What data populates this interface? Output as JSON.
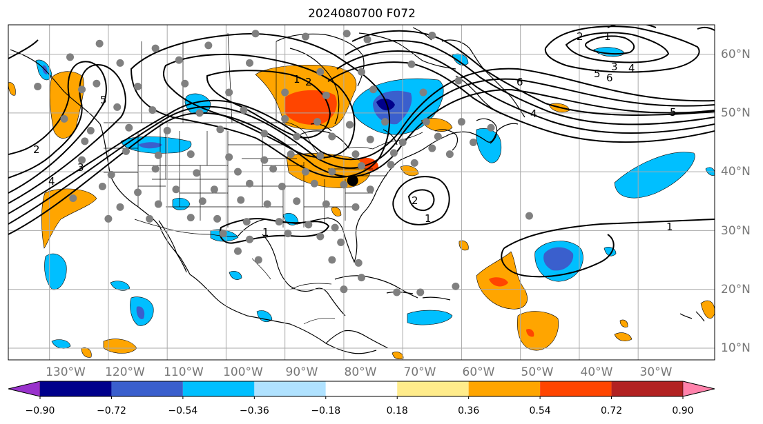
{
  "title": "2024080700 F072",
  "map": {
    "projection": "lat-lon",
    "longitude_labels": [
      "130°W",
      "120°W",
      "110°W",
      "100°W",
      "90°W",
      "80°W",
      "70°W",
      "60°W",
      "50°W",
      "40°W",
      "30°W"
    ],
    "latitude_labels": [
      "60°N",
      "50°N",
      "40°N",
      "30°N",
      "20°N",
      "10°N"
    ],
    "lon_range": [
      -137,
      -17
    ],
    "lat_range": [
      8,
      65
    ],
    "grid": true,
    "contour_labels": [
      "1",
      "2",
      "3",
      "4",
      "5",
      "6"
    ],
    "colors": {
      "coast": "#000000",
      "grid": "#aaaaaa",
      "station_marker": "#808080",
      "highlight_marker": "#000000"
    }
  },
  "colorbar": {
    "ticks": [
      "−0.90",
      "−0.72",
      "−0.54",
      "−0.36",
      "−0.18",
      "0.18",
      "0.36",
      "0.54",
      "0.72",
      "0.90"
    ],
    "colors": [
      "#9932cc",
      "#00008b",
      "#3a5fcd",
      "#00bfff",
      "#b0e2ff",
      "#ffffff",
      "#ffec8b",
      "#ffa500",
      "#ff4500",
      "#b22222",
      "#ff82ab"
    ]
  },
  "stations": [
    [
      -121.5,
      61.8
    ],
    [
      -112,
      61
    ],
    [
      -103,
      61.5
    ],
    [
      -95,
      63.5
    ],
    [
      -86.5,
      63
    ],
    [
      -79.5,
      63.5
    ],
    [
      -76,
      62.5
    ],
    [
      -65,
      63.2
    ],
    [
      -126.5,
      59.5
    ],
    [
      -118,
      58.5
    ],
    [
      -108,
      59
    ],
    [
      -96,
      58.5
    ],
    [
      -84,
      57
    ],
    [
      -77,
      57
    ],
    [
      -68.5,
      58.3
    ],
    [
      -122,
      55
    ],
    [
      -115,
      54.5
    ],
    [
      -107,
      55
    ],
    [
      -99.5,
      53.5
    ],
    [
      -90,
      53.5
    ],
    [
      -83,
      53
    ],
    [
      -75,
      54
    ],
    [
      -66.5,
      53.5
    ],
    [
      -60.5,
      55.5
    ],
    [
      -132,
      54.5
    ],
    [
      -124.5,
      54
    ],
    [
      -118.5,
      51
    ],
    [
      -112.5,
      50.5
    ],
    [
      -104.5,
      50
    ],
    [
      -97,
      50.5
    ],
    [
      -90,
      49
    ],
    [
      -84.5,
      48.5
    ],
    [
      -79,
      48
    ],
    [
      -73,
      48.5
    ],
    [
      -66,
      48.5
    ],
    [
      -60,
      48.5
    ],
    [
      -55,
      47.5
    ],
    [
      -127.5,
      49
    ],
    [
      -123,
      47
    ],
    [
      -116.5,
      47.5
    ],
    [
      -110,
      47
    ],
    [
      -101,
      47.2
    ],
    [
      -93.5,
      46.5
    ],
    [
      -88,
      46
    ],
    [
      -82,
      46
    ],
    [
      -75.5,
      45.5
    ],
    [
      -70,
      45
    ],
    [
      -64,
      46
    ],
    [
      -58,
      45
    ],
    [
      -124,
      45.2
    ],
    [
      -117,
      43.5
    ],
    [
      -111.5,
      42.8
    ],
    [
      -106,
      43
    ],
    [
      -99.5,
      42.5
    ],
    [
      -93.5,
      42
    ],
    [
      -89,
      43
    ],
    [
      -84,
      42.7
    ],
    [
      -78,
      43
    ],
    [
      -71.5,
      43.2
    ],
    [
      -65,
      44
    ],
    [
      -62,
      43
    ],
    [
      -124.5,
      42
    ],
    [
      -119.5,
      39.5
    ],
    [
      -112,
      40.5
    ],
    [
      -105,
      39.8
    ],
    [
      -98,
      40
    ],
    [
      -92,
      40.5
    ],
    [
      -86.5,
      40
    ],
    [
      -82,
      40
    ],
    [
      -77,
      41
    ],
    [
      -72,
      41.2
    ],
    [
      -68,
      41.5
    ],
    [
      -121,
      37.5
    ],
    [
      -115,
      36.5
    ],
    [
      -108.5,
      37
    ],
    [
      -102,
      37
    ],
    [
      -96,
      38
    ],
    [
      -90.5,
      37.5
    ],
    [
      -85,
      38
    ],
    [
      -80,
      37.8
    ],
    [
      -75.5,
      37
    ],
    [
      -126,
      35.5
    ],
    [
      -118,
      34
    ],
    [
      -111.5,
      34.5
    ],
    [
      -104,
      35
    ],
    [
      -97.5,
      35.2
    ],
    [
      -93,
      34.5
    ],
    [
      -88,
      35
    ],
    [
      -83,
      34.5
    ],
    [
      -78,
      34
    ],
    [
      -120,
      32
    ],
    [
      -113,
      32
    ],
    [
      -106,
      32.2
    ],
    [
      -101.5,
      32
    ],
    [
      -96.5,
      31.5
    ],
    [
      -91,
      31.5
    ],
    [
      -86,
      31
    ],
    [
      -81.5,
      30.5
    ],
    [
      -100.5,
      29.5
    ],
    [
      -96,
      28.5
    ],
    [
      -89.5,
      29.5
    ],
    [
      -84,
      29
    ],
    [
      -80.5,
      28
    ],
    [
      -98,
      26.5
    ],
    [
      -94.5,
      25
    ],
    [
      -82,
      25
    ],
    [
      -77.5,
      24.5
    ],
    [
      -77,
      22
    ],
    [
      -80,
      20
    ],
    [
      -71,
      19.5
    ],
    [
      -67,
      19.5
    ],
    [
      -61,
      20.5
    ],
    [
      -48.5,
      32.5
    ]
  ],
  "highlight_station": [
    -78.5,
    38.5
  ]
}
